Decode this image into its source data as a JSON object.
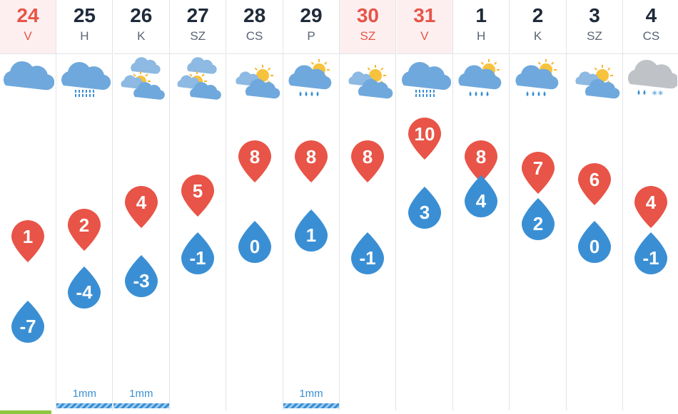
{
  "colors": {
    "high_pin": "#e85447",
    "low_drop": "#3a8fd4",
    "weekend_text": "#e85447",
    "weekday_text": "#1f2a3a",
    "weekend_bg": "#fdeff0"
  },
  "days": [
    {
      "day": "24",
      "weekday": "V",
      "weekend": true,
      "icon": "cloudy-icon",
      "high": "1",
      "low": "-7",
      "precip": ""
    },
    {
      "day": "25",
      "weekday": "H",
      "weekend": false,
      "icon": "cloud-drizzle-icon",
      "high": "2",
      "low": "-4",
      "precip": "1mm"
    },
    {
      "day": "26",
      "weekday": "K",
      "weekend": false,
      "icon": "partly-cloudy-icon",
      "high": "4",
      "low": "-3",
      "precip": "1mm"
    },
    {
      "day": "27",
      "weekday": "SZ",
      "weekend": false,
      "icon": "partly-cloudy-icon",
      "high": "5",
      "low": "-1",
      "precip": ""
    },
    {
      "day": "28",
      "weekday": "CS",
      "weekend": false,
      "icon": "sun-cloud-icon",
      "high": "8",
      "low": "0",
      "precip": ""
    },
    {
      "day": "29",
      "weekday": "P",
      "weekend": false,
      "icon": "sun-cloud-rain-icon",
      "high": "8",
      "low": "1",
      "precip": "1mm"
    },
    {
      "day": "30",
      "weekday": "SZ",
      "weekend": true,
      "icon": "sun-cloud-icon",
      "high": "8",
      "low": "-1",
      "precip": ""
    },
    {
      "day": "31",
      "weekday": "V",
      "weekend": true,
      "icon": "cloud-drizzle-icon",
      "high": "10",
      "low": "3",
      "precip": ""
    },
    {
      "day": "1",
      "weekday": "H",
      "weekend": false,
      "icon": "sun-cloud-rain-icon",
      "high": "8",
      "low": "4",
      "precip": ""
    },
    {
      "day": "2",
      "weekday": "K",
      "weekend": false,
      "icon": "sun-cloud-rain-icon",
      "high": "7",
      "low": "2",
      "precip": ""
    },
    {
      "day": "3",
      "weekday": "SZ",
      "weekend": false,
      "icon": "sun-cloud-icon",
      "high": "6",
      "low": "0",
      "precip": ""
    },
    {
      "day": "4",
      "weekday": "CS",
      "weekend": false,
      "icon": "cloud-snow-icon",
      "high": "4",
      "low": "-1",
      "precip": ""
    }
  ]
}
